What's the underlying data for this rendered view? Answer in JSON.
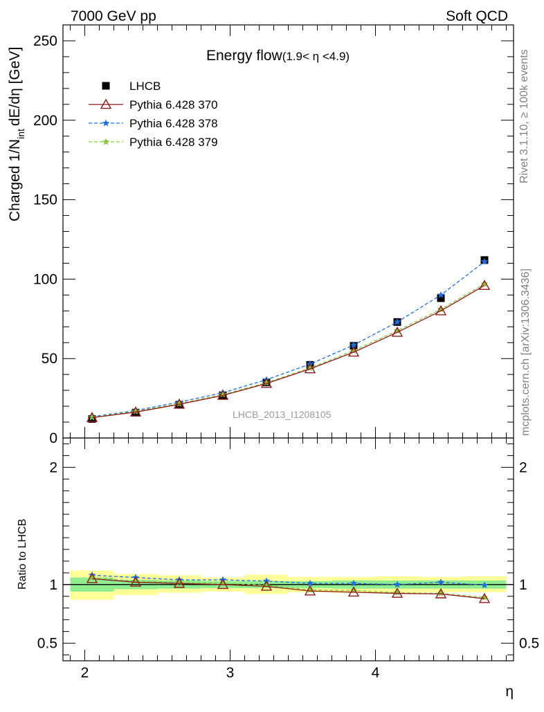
{
  "header": {
    "left": "7000 GeV pp",
    "right": "Soft QCD"
  },
  "side": {
    "rivet": "Rivet 3.1.10, ≥ 100k events",
    "mcplots": "mcplots.cern.ch [arXiv:1306.3436]"
  },
  "chart_data": {
    "type": "line",
    "title": "Energy flow",
    "title_sub": "(1.9< η <4.9)",
    "watermark": "LHCB_2013_I1208105",
    "ylabel_main": "Charged 1/N",
    "ylabel_sub": "int",
    "ylabel_tail": "dE/dη [GeV]",
    "ylabel_ratio": "Ratio to LHCB",
    "xlabel": "η",
    "xlim": [
      1.85,
      4.95
    ],
    "ylim_main": [
      0,
      260
    ],
    "ylim_ratio": [
      0.35,
      2.25
    ],
    "xticks": [
      2,
      3,
      4
    ],
    "xtick_labels": [
      "2",
      "3",
      "4"
    ],
    "yticks_main": [
      0,
      50,
      100,
      150,
      200,
      250
    ],
    "ytick_labels_main": [
      "0",
      "50",
      "100",
      "150",
      "200",
      "250"
    ],
    "yticks_ratio": [
      0.5,
      1,
      2
    ],
    "ytick_labels_ratio": [
      "0.5",
      "1",
      "2"
    ],
    "legend_position": "top-left",
    "x": [
      2.05,
      2.35,
      2.65,
      2.95,
      3.25,
      3.55,
      3.85,
      4.15,
      4.45,
      4.75
    ],
    "bin_edges": [
      1.9,
      2.2,
      2.5,
      2.8,
      3.1,
      3.4,
      3.7,
      4.0,
      4.3,
      4.6,
      4.9
    ],
    "series": [
      {
        "name": "LHCB",
        "color": "#000000",
        "marker": "square",
        "values": [
          12,
          16,
          21,
          27,
          35,
          46,
          58,
          73,
          88,
          112
        ]
      },
      {
        "name": "Pythia 6.428 370",
        "color": "#8b1a1a",
        "marker": "triangle",
        "dash": "solid",
        "values": [
          12.8,
          16.3,
          21.2,
          26.8,
          34.3,
          43.5,
          54.0,
          66.5,
          80.0,
          96.0
        ]
      },
      {
        "name": "Pythia 6.428 378",
        "color": "#1e6fd9",
        "marker": "star",
        "dash": "dashed",
        "values": [
          13.4,
          17.3,
          22.6,
          28.5,
          36.7,
          46.5,
          58.5,
          73.0,
          90.0,
          111.0
        ]
      },
      {
        "name": "Pythia 6.428 379",
        "color": "#8cc63f",
        "marker": "star",
        "dash": "dashed",
        "values": [
          13.0,
          16.8,
          21.6,
          27.4,
          34.8,
          44.0,
          55.0,
          67.5,
          81.0,
          97.0
        ]
      }
    ],
    "ratio_series": [
      {
        "name": "Pythia 6.428 370",
        "values": [
          1.05,
          1.02,
          1.01,
          1.0,
          0.985,
          0.945,
          0.935,
          0.925,
          0.92,
          0.88
        ]
      },
      {
        "name": "Pythia 6.428 378",
        "values": [
          1.08,
          1.06,
          1.04,
          1.04,
          1.03,
          1.01,
          1.01,
          1.0,
          1.02,
          0.995
        ]
      },
      {
        "name": "Pythia 6.428 379",
        "values": [
          1.06,
          1.03,
          1.02,
          1.01,
          0.995,
          0.955,
          0.95,
          0.93,
          0.925,
          0.89
        ]
      }
    ],
    "uncertainty_bands": {
      "inner_color": "#90ee90",
      "outer_color": "#ffff99",
      "inner_low": [
        0.94,
        0.96,
        0.965,
        0.97,
        0.97,
        0.97,
        0.965,
        0.965,
        0.965,
        0.965
      ],
      "inner_high": [
        1.06,
        1.04,
        1.035,
        1.03,
        1.03,
        1.03,
        1.035,
        1.035,
        1.035,
        1.035
      ],
      "outer_low": [
        0.87,
        0.91,
        0.93,
        0.94,
        0.92,
        0.935,
        0.93,
        0.93,
        0.935,
        0.935
      ],
      "outer_high": [
        1.12,
        1.09,
        1.08,
        1.06,
        1.085,
        1.065,
        1.065,
        1.07,
        1.065,
        1.07
      ]
    }
  }
}
